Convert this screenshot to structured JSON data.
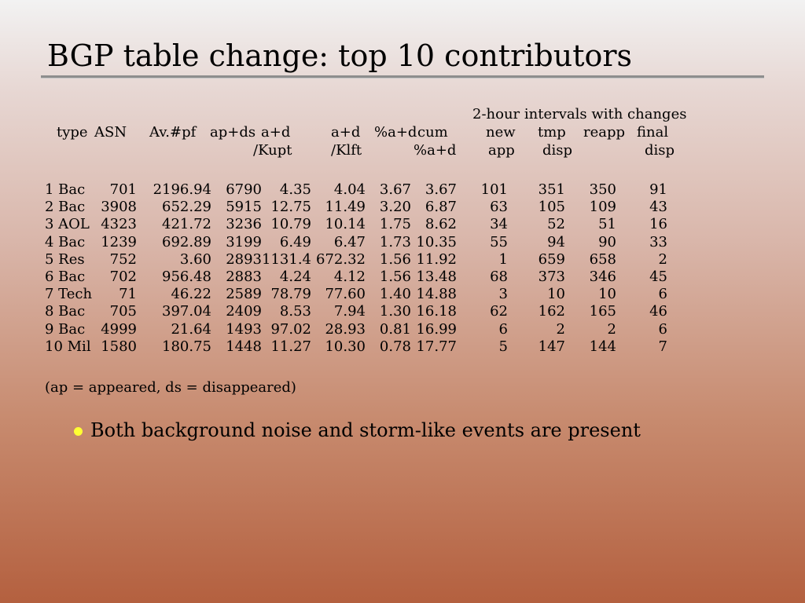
{
  "title": "BGP table change: top 10 contributors",
  "header": {
    "group_label": "2-hour intervals with changes",
    "type": "type",
    "asn": "ASN",
    "avpf": "Av.#pf",
    "apds": "ap+ds",
    "ad_kupt_1": "a+d",
    "ad_kupt_2": "/Kupt",
    "ad_klft_1": "a+d",
    "ad_klft_2": "/Klft",
    "pct_ad": "%a+d",
    "cum_1": "cum",
    "cum_2": "%a+d",
    "new_1": "new",
    "new_2": "app",
    "tmp_1": "tmp",
    "tmp_2": "disp",
    "reapp": "reapp",
    "final_1": "final",
    "final_2": "disp"
  },
  "rows": [
    {
      "type": "1 Bac",
      "asn": "701",
      "avpf": "2196.94",
      "apds": "6790",
      "ad_kupt": "4.35",
      "ad_klft": "4.04",
      "pct_ad": "3.67",
      "cum": "3.67",
      "new_app": "101",
      "tmp_disp": "351",
      "reapp": "350",
      "final_disp": "91"
    },
    {
      "type": "2 Bac",
      "asn": "3908",
      "avpf": "652.29",
      "apds": "5915",
      "ad_kupt": "12.75",
      "ad_klft": "11.49",
      "pct_ad": "3.20",
      "cum": "6.87",
      "new_app": "63",
      "tmp_disp": "105",
      "reapp": "109",
      "final_disp": "43"
    },
    {
      "type": "3 AOL",
      "asn": "4323",
      "avpf": "421.72",
      "apds": "3236",
      "ad_kupt": "10.79",
      "ad_klft": "10.14",
      "pct_ad": "1.75",
      "cum": "8.62",
      "new_app": "34",
      "tmp_disp": "52",
      "reapp": "51",
      "final_disp": "16"
    },
    {
      "type": "4 Bac",
      "asn": "1239",
      "avpf": "692.89",
      "apds": "3199",
      "ad_kupt": "6.49",
      "ad_klft": "6.47",
      "pct_ad": "1.73",
      "cum": "10.35",
      "new_app": "55",
      "tmp_disp": "94",
      "reapp": "90",
      "final_disp": "33"
    },
    {
      "type": "5 Res",
      "asn": "752",
      "avpf": "3.60",
      "apds": "2893",
      "ad_kupt": "1131.4",
      "ad_klft": "672.32",
      "pct_ad": "1.56",
      "cum": "11.92",
      "new_app": "1",
      "tmp_disp": "659",
      "reapp": "658",
      "final_disp": "2"
    },
    {
      "type": "6 Bac",
      "asn": "702",
      "avpf": "956.48",
      "apds": "2883",
      "ad_kupt": "4.24",
      "ad_klft": "4.12",
      "pct_ad": "1.56",
      "cum": "13.48",
      "new_app": "68",
      "tmp_disp": "373",
      "reapp": "346",
      "final_disp": "45"
    },
    {
      "type": "7 Tech",
      "asn": "71",
      "avpf": "46.22",
      "apds": "2589",
      "ad_kupt": "78.79",
      "ad_klft": "77.60",
      "pct_ad": "1.40",
      "cum": "14.88",
      "new_app": "3",
      "tmp_disp": "10",
      "reapp": "10",
      "final_disp": "6"
    },
    {
      "type": "8 Bac",
      "asn": "705",
      "avpf": "397.04",
      "apds": "2409",
      "ad_kupt": "8.53",
      "ad_klft": "7.94",
      "pct_ad": "1.30",
      "cum": "16.18",
      "new_app": "62",
      "tmp_disp": "162",
      "reapp": "165",
      "final_disp": "46"
    },
    {
      "type": "9 Bac",
      "asn": "4999",
      "avpf": "21.64",
      "apds": "1493",
      "ad_kupt": "97.02",
      "ad_klft": "28.93",
      "pct_ad": "0.81",
      "cum": "16.99",
      "new_app": "6",
      "tmp_disp": "2",
      "reapp": "2",
      "final_disp": "6"
    },
    {
      "type": "10 Mil",
      "asn": "1580",
      "avpf": "180.75",
      "apds": "1448",
      "ad_kupt": "11.27",
      "ad_klft": "10.30",
      "pct_ad": "0.78",
      "cum": "17.77",
      "new_app": "5",
      "tmp_disp": "147",
      "reapp": "144",
      "final_disp": "7"
    }
  ],
  "footnote": "(ap = appeared, ds = disappeared)",
  "bullet": "Both background noise and storm-like events are present",
  "colors": {
    "bullet": "#ffff33",
    "rule": "#8e8e8e"
  }
}
